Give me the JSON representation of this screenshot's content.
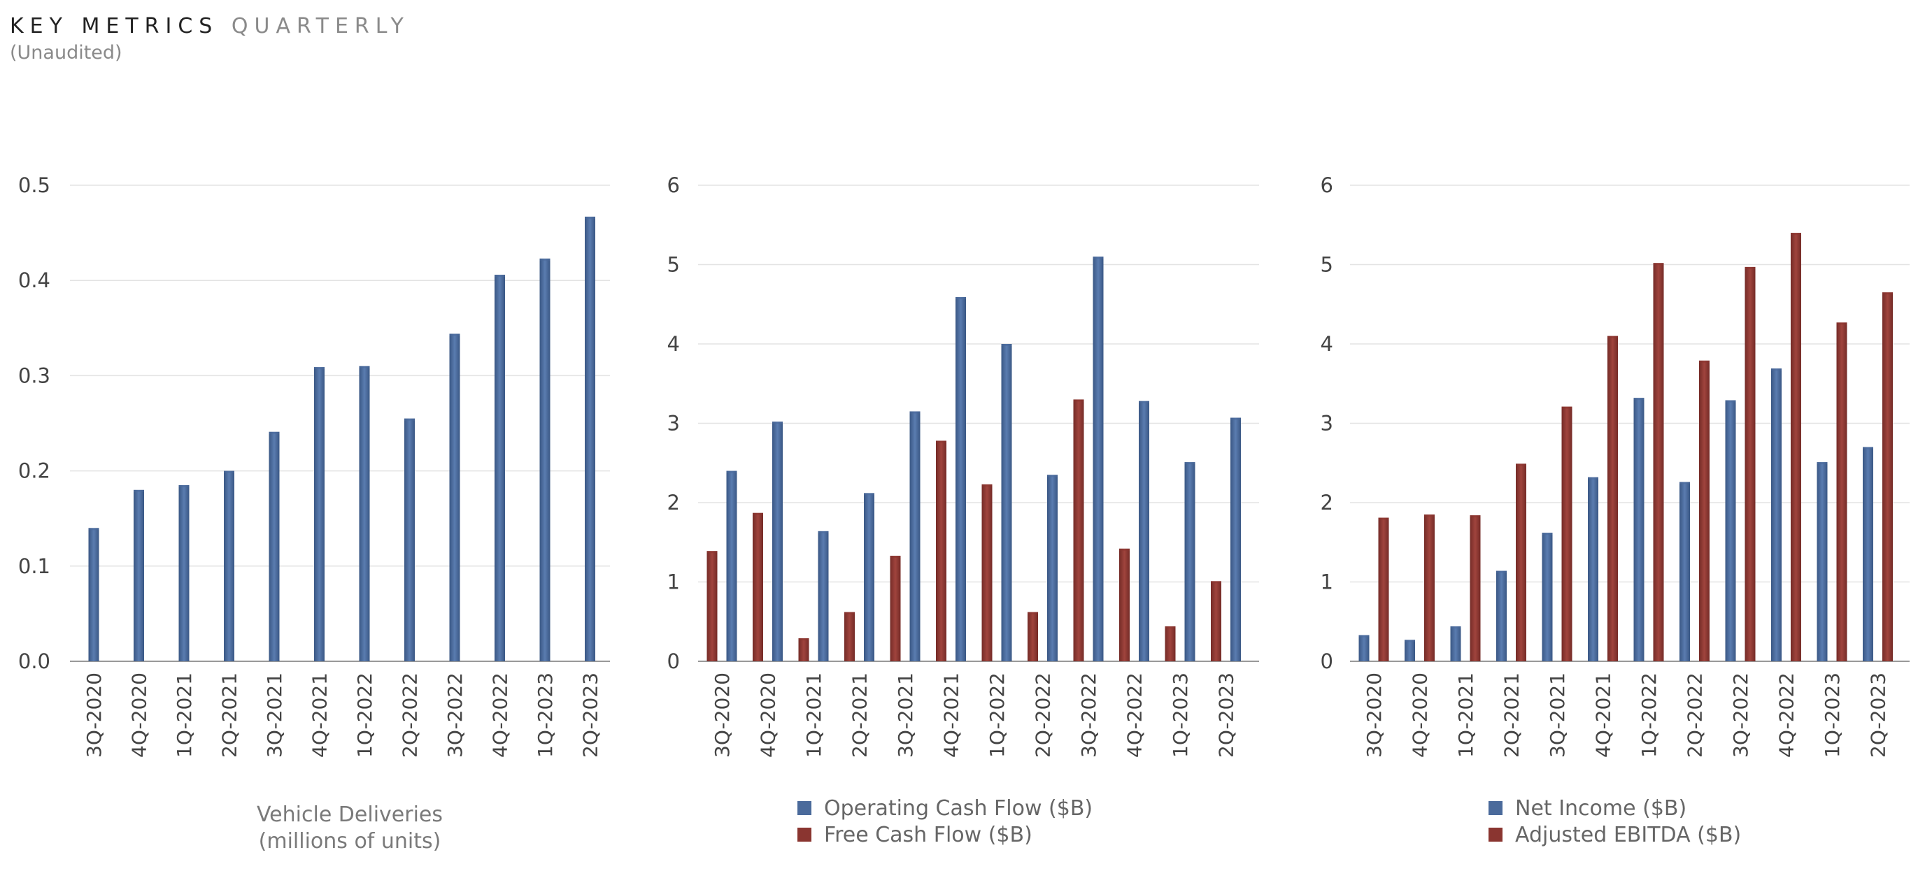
{
  "header": {
    "title_main": "KEY METRICS",
    "title_accent": "QUARTERLY",
    "subtitle": "(Unaudited)"
  },
  "colors": {
    "blue": "#4a6a9b",
    "red": "#8a3530",
    "grid": "#e3e3e3",
    "axis": "#999999"
  },
  "chart_data": [
    {
      "type": "bar",
      "categories": [
        "3Q-2020",
        "4Q-2020",
        "1Q-2021",
        "2Q-2021",
        "3Q-2021",
        "4Q-2021",
        "1Q-2022",
        "2Q-2022",
        "3Q-2022",
        "4Q-2022",
        "1Q-2023",
        "2Q-2023"
      ],
      "series": [
        {
          "name": "Vehicle Deliveries",
          "color": "blue",
          "values": [
            0.14,
            0.18,
            0.185,
            0.2,
            0.241,
            0.309,
            0.31,
            0.255,
            0.344,
            0.406,
            0.423,
            0.467
          ]
        }
      ],
      "ylim": [
        0,
        0.5
      ],
      "yticks": [
        "0.0",
        "0.1",
        "0.2",
        "0.3",
        "0.4",
        "0.5"
      ],
      "ytick_values": [
        0,
        0.1,
        0.2,
        0.3,
        0.4,
        0.5
      ],
      "xlabel_lines": [
        "Vehicle Deliveries",
        "(millions of units)"
      ],
      "legend": []
    },
    {
      "type": "bar",
      "categories": [
        "3Q-2020",
        "4Q-2020",
        "1Q-2021",
        "2Q-2021",
        "3Q-2021",
        "4Q-2021",
        "1Q-2022",
        "2Q-2022",
        "3Q-2022",
        "4Q-2022",
        "1Q-2023",
        "2Q-2023"
      ],
      "series": [
        {
          "name": "Free Cash Flow ($B)",
          "color": "red",
          "values": [
            1.39,
            1.87,
            0.29,
            0.62,
            1.33,
            2.78,
            2.23,
            0.62,
            3.3,
            1.42,
            0.44,
            1.01
          ]
        },
        {
          "name": "Operating Cash Flow ($B)",
          "color": "blue",
          "values": [
            2.4,
            3.02,
            1.64,
            2.12,
            3.15,
            4.59,
            4.0,
            2.35,
            5.1,
            3.28,
            2.51,
            3.07
          ]
        }
      ],
      "ylim": [
        0,
        6
      ],
      "yticks": [
        "0",
        "1",
        "2",
        "3",
        "4",
        "5",
        "6"
      ],
      "ytick_values": [
        0,
        1,
        2,
        3,
        4,
        5,
        6
      ],
      "xlabel_lines": [],
      "legend": [
        {
          "label": "Operating Cash Flow ($B)",
          "color": "blue"
        },
        {
          "label": "Free Cash Flow ($B)",
          "color": "red"
        }
      ]
    },
    {
      "type": "bar",
      "categories": [
        "3Q-2020",
        "4Q-2020",
        "1Q-2021",
        "2Q-2021",
        "3Q-2021",
        "4Q-2021",
        "1Q-2022",
        "2Q-2022",
        "3Q-2022",
        "4Q-2022",
        "1Q-2023",
        "2Q-2023"
      ],
      "series": [
        {
          "name": "Net Income ($B)",
          "color": "blue",
          "values": [
            0.33,
            0.27,
            0.44,
            1.14,
            1.62,
            2.32,
            3.32,
            2.26,
            3.29,
            3.69,
            2.51,
            2.7
          ]
        },
        {
          "name": "Adjusted EBITDA ($B)",
          "color": "red",
          "values": [
            1.81,
            1.85,
            1.84,
            2.49,
            3.21,
            4.1,
            5.02,
            3.79,
            4.97,
            5.4,
            4.27,
            4.65
          ]
        }
      ],
      "ylim": [
        0,
        6
      ],
      "yticks": [
        "0",
        "1",
        "2",
        "3",
        "4",
        "5",
        "6"
      ],
      "ytick_values": [
        0,
        1,
        2,
        3,
        4,
        5,
        6
      ],
      "xlabel_lines": [],
      "legend": [
        {
          "label": "Net Income ($B)",
          "color": "blue"
        },
        {
          "label": "Adjusted EBITDA ($B)",
          "color": "red"
        }
      ]
    }
  ]
}
